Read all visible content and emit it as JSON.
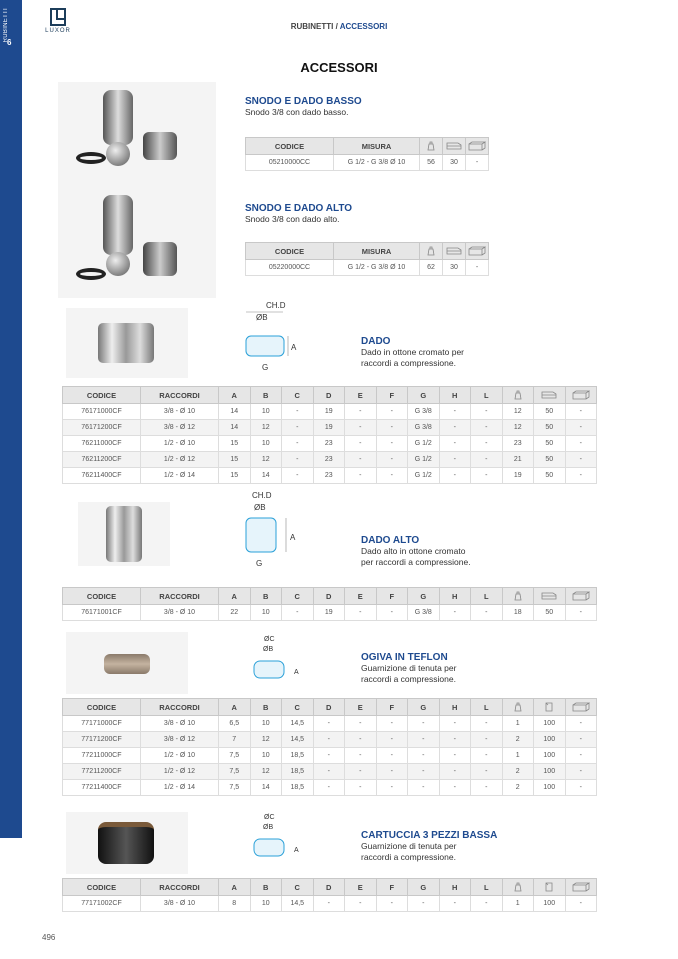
{
  "sidebar": {
    "section": "RUBINETTI",
    "number": "6"
  },
  "logo": {
    "text": "LUXOR"
  },
  "breadcrumb": {
    "parent": "RUBINETTI",
    "separator": " / ",
    "current": "ACCESSORI"
  },
  "page_title": "ACCESSORI",
  "page_number": "496",
  "icons": {
    "weight": "weight-icon",
    "box": "box-icon",
    "carton": "carton-icon",
    "bag": "bag-icon"
  },
  "colors": {
    "accent": "#1e4a8f"
  },
  "products": [
    {
      "id": "snodo-basso",
      "title": "SNODO E DADO BASSO",
      "desc": [
        "Snodo 3/8 con dado basso."
      ],
      "headers": [
        "CODICE",
        "MISURA",
        "@weight",
        "@box",
        "@carton"
      ],
      "rows": [
        [
          "05210000CC",
          "G 1/2 - G 3/8 Ø 10",
          "56",
          "30",
          "-"
        ]
      ]
    },
    {
      "id": "snodo-alto",
      "title": "SNODO E DADO ALTO",
      "desc": [
        "Snodo 3/8 con dado alto."
      ],
      "headers": [
        "CODICE",
        "MISURA",
        "@weight",
        "@box",
        "@carton"
      ],
      "rows": [
        [
          "05220000CC",
          "G 1/2 - G 3/8 Ø 10",
          "62",
          "30",
          "-"
        ]
      ]
    },
    {
      "id": "dado",
      "title": "DADO",
      "desc": [
        "Dado in ottone cromato per",
        "raccordi a compressione."
      ],
      "diagram": {
        "labels": [
          "CH.D",
          "ØB",
          "A",
          "G"
        ]
      },
      "headers": [
        "CODICE",
        "RACCORDI",
        "A",
        "B",
        "C",
        "D",
        "E",
        "F",
        "G",
        "H",
        "L",
        "@weight",
        "@box",
        "@carton"
      ],
      "rows": [
        [
          "76171000CF",
          "3/8 - Ø 10",
          "14",
          "10",
          "-",
          "19",
          "-",
          "-",
          "G 3/8",
          "-",
          "-",
          "12",
          "50",
          "-"
        ],
        [
          "76171200CF",
          "3/8 - Ø 12",
          "14",
          "12",
          "-",
          "19",
          "-",
          "-",
          "G 3/8",
          "-",
          "-",
          "12",
          "50",
          "-"
        ],
        [
          "76211000CF",
          "1/2 - Ø 10",
          "15",
          "10",
          "-",
          "23",
          "-",
          "-",
          "G 1/2",
          "-",
          "-",
          "23",
          "50",
          "-"
        ],
        [
          "76211200CF",
          "1/2 - Ø 12",
          "15",
          "12",
          "-",
          "23",
          "-",
          "-",
          "G 1/2",
          "-",
          "-",
          "21",
          "50",
          "-"
        ],
        [
          "76211400CF",
          "1/2 - Ø 14",
          "15",
          "14",
          "-",
          "23",
          "-",
          "-",
          "G 1/2",
          "-",
          "-",
          "19",
          "50",
          "-"
        ]
      ]
    },
    {
      "id": "dado-alto",
      "title": "DADO ALTO",
      "desc": [
        "Dado alto in ottone cromato",
        "per raccordi a compressione."
      ],
      "diagram": {
        "labels": [
          "CH.D",
          "ØB",
          "A",
          "G"
        ]
      },
      "headers": [
        "CODICE",
        "RACCORDI",
        "A",
        "B",
        "C",
        "D",
        "E",
        "F",
        "G",
        "H",
        "L",
        "@weight",
        "@box",
        "@carton"
      ],
      "rows": [
        [
          "76171001CF",
          "3/8 - Ø 10",
          "22",
          "10",
          "-",
          "19",
          "-",
          "-",
          "G 3/8",
          "-",
          "-",
          "18",
          "50",
          "-"
        ]
      ]
    },
    {
      "id": "ogiva",
      "title": "OGIVA IN TEFLON",
      "desc": [
        "Guarnizione di tenuta per",
        "raccordi a compressione."
      ],
      "diagram": {
        "labels": [
          "ØC",
          "ØB",
          "A"
        ]
      },
      "headers": [
        "CODICE",
        "RACCORDI",
        "A",
        "B",
        "C",
        "D",
        "E",
        "F",
        "G",
        "H",
        "L",
        "@weight",
        "@bag",
        "@carton"
      ],
      "rows": [
        [
          "77171000CF",
          "3/8 - Ø 10",
          "6,5",
          "10",
          "14,5",
          "-",
          "-",
          "-",
          "-",
          "-",
          "-",
          "1",
          "100",
          "-"
        ],
        [
          "77171200CF",
          "3/8 - Ø 12",
          "7",
          "12",
          "14,5",
          "-",
          "-",
          "-",
          "-",
          "-",
          "-",
          "2",
          "100",
          "-"
        ],
        [
          "77211000CF",
          "1/2 - Ø 10",
          "7,5",
          "10",
          "18,5",
          "-",
          "-",
          "-",
          "-",
          "-",
          "-",
          "1",
          "100",
          "-"
        ],
        [
          "77211200CF",
          "1/2 - Ø 12",
          "7,5",
          "12",
          "18,5",
          "-",
          "-",
          "-",
          "-",
          "-",
          "-",
          "2",
          "100",
          "-"
        ],
        [
          "77211400CF",
          "1/2 - Ø 14",
          "7,5",
          "14",
          "18,5",
          "-",
          "-",
          "-",
          "-",
          "-",
          "-",
          "2",
          "100",
          "-"
        ]
      ]
    },
    {
      "id": "cartuccia",
      "title": "CARTUCCIA 3 PEZZI BASSA",
      "desc": [
        "Guarnizione di tenuta per",
        "raccordi a compressione."
      ],
      "diagram": {
        "labels": [
          "ØC",
          "ØB",
          "A"
        ]
      },
      "headers": [
        "CODICE",
        "RACCORDI",
        "A",
        "B",
        "C",
        "D",
        "E",
        "F",
        "G",
        "H",
        "L",
        "@weight",
        "@bag",
        "@carton"
      ],
      "rows": [
        [
          "77171002CF",
          "3/8 - Ø 10",
          "8",
          "10",
          "14,5",
          "-",
          "-",
          "-",
          "-",
          "-",
          "-",
          "1",
          "100",
          "-"
        ]
      ]
    }
  ]
}
